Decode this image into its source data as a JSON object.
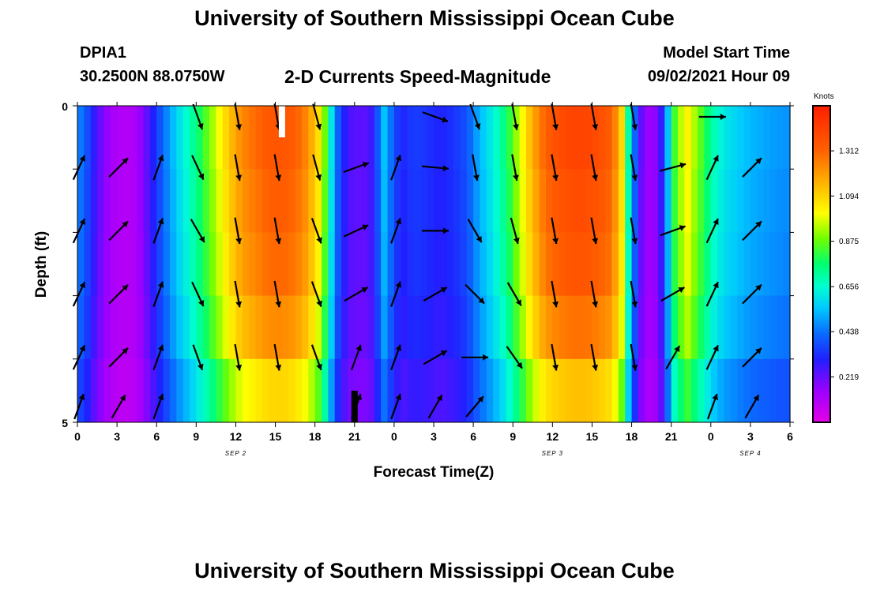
{
  "header": {
    "title": "University of Southern Mississippi Ocean Cube",
    "station": "DPIA1",
    "coordinates": "30.2500N  88.0750W",
    "subtitle": "2-D Currents Speed-Magnitude",
    "model_start_label": "Model Start Time",
    "model_start_value": "09/02/2021 Hour 09"
  },
  "footer": {
    "title": "University of Southern Mississippi Ocean Cube"
  },
  "chart_data": {
    "type": "heatmap",
    "title": "2-D Currents Speed-Magnitude",
    "xlabel": "Forecast Time(Z)",
    "ylabel": "Depth (ft)",
    "x_tick_labels": [
      "0",
      "3",
      "6",
      "9",
      "12",
      "15",
      "18",
      "21",
      "0",
      "3",
      "6",
      "9",
      "12",
      "15",
      "18",
      "21",
      "0",
      "3",
      "6"
    ],
    "day_labels": [
      {
        "label": "SEP 2",
        "hours": 12
      },
      {
        "label": "SEP 3",
        "hours": 36
      },
      {
        "label": "SEP 4",
        "hours": 51
      }
    ],
    "y_tick_labels": [
      "0",
      "5"
    ],
    "y_range_ft": [
      0,
      5
    ],
    "x_range_hours": [
      0,
      54
    ],
    "depth_layers": 5,
    "speed_profile_knots": [
      [
        0,
        0.47
      ],
      [
        0.7,
        0.38
      ],
      [
        1.5,
        0.24
      ],
      [
        2.5,
        0.13
      ],
      [
        3.5,
        0.1
      ],
      [
        4.5,
        0.12
      ],
      [
        5.5,
        0.26
      ],
      [
        6.5,
        0.42
      ],
      [
        7.5,
        0.56
      ],
      [
        8.5,
        0.67
      ],
      [
        9.5,
        0.8
      ],
      [
        10.5,
        0.95
      ],
      [
        11.5,
        1.1
      ],
      [
        12.5,
        1.22
      ],
      [
        13.5,
        1.27
      ],
      [
        14.5,
        1.32
      ],
      [
        15.5,
        1.33
      ],
      [
        16.5,
        1.3
      ],
      [
        17.5,
        1.2
      ],
      [
        18.5,
        1.0
      ],
      [
        19.2,
        0.62
      ],
      [
        19.8,
        0.38
      ],
      [
        20.5,
        0.25
      ],
      [
        21.5,
        0.22
      ],
      [
        22.2,
        0.25
      ],
      [
        22.8,
        0.4
      ],
      [
        23.3,
        0.55
      ],
      [
        23.8,
        0.42
      ],
      [
        24.5,
        0.3
      ],
      [
        25.5,
        0.35
      ],
      [
        26.5,
        0.33
      ],
      [
        27.5,
        0.3
      ],
      [
        28.5,
        0.33
      ],
      [
        29.5,
        0.38
      ],
      [
        30.5,
        0.52
      ],
      [
        31.5,
        0.62
      ],
      [
        32.5,
        0.75
      ],
      [
        33.5,
        0.95
      ],
      [
        34.5,
        1.15
      ],
      [
        35.5,
        1.3
      ],
      [
        36.5,
        1.35
      ],
      [
        37.5,
        1.38
      ],
      [
        38.5,
        1.38
      ],
      [
        39.5,
        1.35
      ],
      [
        40.5,
        1.3
      ],
      [
        41.3,
        1.05
      ],
      [
        41.8,
        0.65
      ],
      [
        42.3,
        0.38
      ],
      [
        42.8,
        0.2
      ],
      [
        43.5,
        0.12
      ],
      [
        44.2,
        0.25
      ],
      [
        44.7,
        0.5
      ],
      [
        45.3,
        0.85
      ],
      [
        46.2,
        1.02
      ],
      [
        47.0,
        0.88
      ],
      [
        47.6,
        0.78
      ],
      [
        48.2,
        0.68
      ],
      [
        49.0,
        0.6
      ],
      [
        50.0,
        0.56
      ],
      [
        51.0,
        0.52
      ],
      [
        52.0,
        0.5
      ],
      [
        53.0,
        0.48
      ],
      [
        54.0,
        0.47
      ]
    ],
    "depth_layer_factors": [
      1.02,
      1.0,
      0.98,
      0.93,
      0.82
    ],
    "vectors": {
      "hours": [
        0,
        3,
        6,
        9,
        12,
        15,
        18,
        21,
        24,
        27,
        30,
        33,
        36,
        39,
        42,
        45,
        48,
        51,
        54
      ],
      "directions_deg": [
        [
          null,
          null,
          null,
          160,
          170,
          170,
          165,
          null,
          null,
          110,
          160,
          170,
          170,
          170,
          170,
          null,
          90,
          null,
          null
        ],
        [
          25,
          45,
          20,
          155,
          170,
          170,
          165,
          70,
          20,
          95,
          170,
          170,
          170,
          170,
          170,
          75,
          25,
          45,
          null
        ],
        [
          25,
          45,
          20,
          150,
          170,
          170,
          160,
          65,
          20,
          90,
          150,
          165,
          170,
          170,
          170,
          70,
          25,
          45,
          null
        ],
        [
          25,
          45,
          20,
          155,
          170,
          170,
          160,
          60,
          20,
          60,
          135,
          150,
          170,
          170,
          170,
          60,
          25,
          45,
          null
        ],
        [
          25,
          45,
          20,
          160,
          170,
          170,
          160,
          20,
          20,
          60,
          90,
          145,
          170,
          170,
          170,
          30,
          25,
          45,
          null
        ],
        [
          20,
          30,
          20,
          null,
          null,
          null,
          null,
          20,
          20,
          30,
          40,
          null,
          null,
          null,
          null,
          null,
          20,
          30,
          null
        ]
      ],
      "bars": [
        {
          "hours": 15.5,
          "color": "white",
          "layer": "top"
        },
        {
          "hours": 21.0,
          "color": "black",
          "layer": "bottom"
        }
      ]
    },
    "colorbar": {
      "label": "Knots",
      "ticks": [
        0.219,
        0.438,
        0.656,
        0.875,
        1.094,
        1.312
      ],
      "range": [
        0.0,
        1.53
      ]
    },
    "grid": false
  }
}
